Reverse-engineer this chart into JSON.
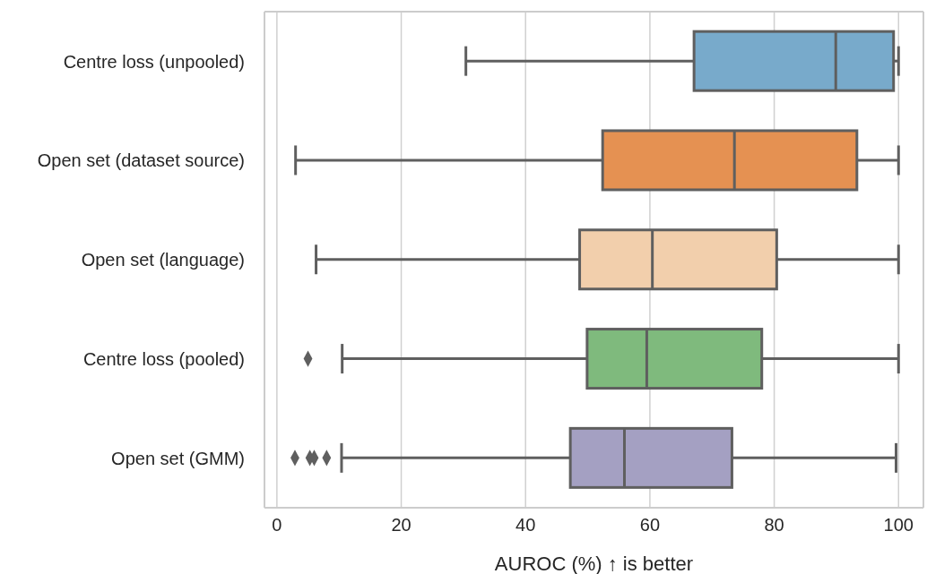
{
  "chart_data": {
    "type": "box",
    "orientation": "horizontal",
    "xlabel": "AUROC (%) ↑ is better",
    "categories": [
      "Centre loss (unpooled)",
      "Open set (dataset source)",
      "Open set (language)",
      "Centre loss (pooled)",
      "Open set (GMM)"
    ],
    "colors": [
      "#78aacb",
      "#e59152",
      "#f2cfac",
      "#7fba7d",
      "#a4a0c2"
    ],
    "boxes": [
      {
        "low": 30.4,
        "q1": 67.1,
        "median": 89.9,
        "q3": 99.2,
        "high": 100
      },
      {
        "low": 3.0,
        "q1": 52.4,
        "median": 73.6,
        "q3": 93.3,
        "high": 100
      },
      {
        "low": 6.3,
        "q1": 48.7,
        "median": 60.4,
        "q3": 80.4,
        "high": 100
      },
      {
        "low": 10.5,
        "q1": 49.9,
        "median": 59.5,
        "q3": 78.0,
        "high": 100,
        "outliers": [
          5.0
        ]
      },
      {
        "low": 10.4,
        "q1": 47.2,
        "median": 55.9,
        "q3": 73.2,
        "high": 99.6,
        "outliers": [
          2.9,
          5.3,
          6.0,
          8.0
        ]
      }
    ],
    "xlim": [
      -2,
      104
    ],
    "xticks": [
      0,
      20,
      40,
      60,
      80,
      100
    ],
    "grid": "x"
  }
}
